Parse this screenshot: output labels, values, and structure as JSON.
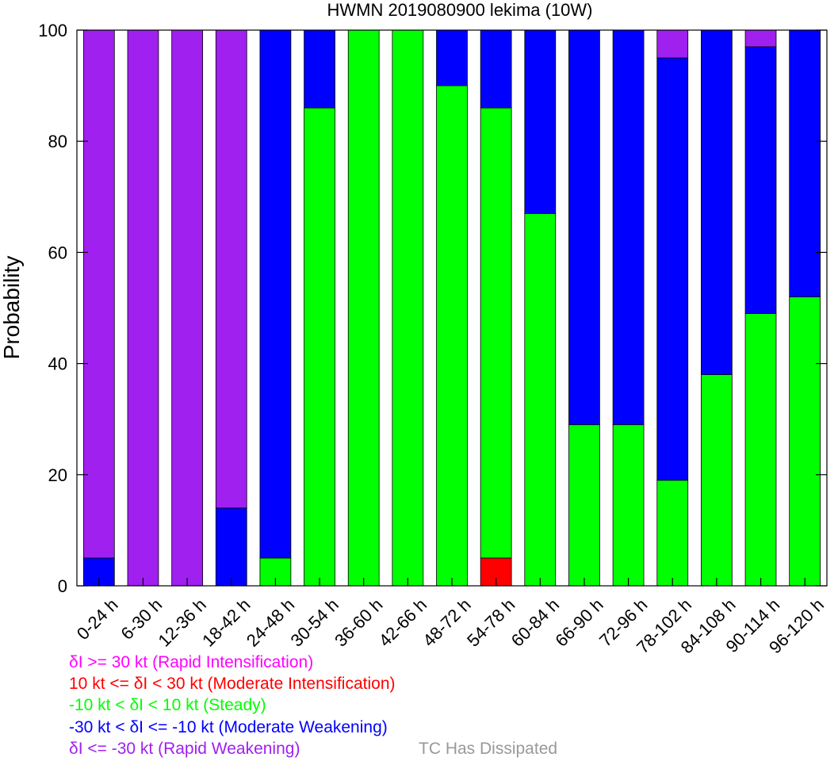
{
  "chart_data": {
    "type": "bar",
    "stacked": true,
    "title": "HWMN 2019080900 lekima (10W)",
    "xlabel": "",
    "ylabel": "Probability",
    "ylim": [
      0,
      100
    ],
    "yticks": [
      0,
      20,
      40,
      60,
      80,
      100
    ],
    "categories": [
      "0-24 h",
      "6-30 h",
      "12-36 h",
      "18-42 h",
      "24-48 h",
      "30-54 h",
      "36-60 h",
      "42-66 h",
      "48-72 h",
      "54-78 h",
      "60-84 h",
      "66-90 h",
      "72-96 h",
      "78-102 h",
      "84-108 h",
      "90-114 h",
      "96-120 h"
    ],
    "series": [
      {
        "name": "Rapid Intensification",
        "color": "#ff00ff",
        "values": [
          0,
          0,
          0,
          0,
          0,
          0,
          0,
          0,
          0,
          0,
          0,
          0,
          0,
          0,
          0,
          0,
          0
        ]
      },
      {
        "name": "Moderate Intensification",
        "color": "#ff0000",
        "values": [
          0,
          0,
          0,
          0,
          0,
          0,
          0,
          0,
          0,
          5,
          0,
          0,
          0,
          0,
          0,
          0,
          0
        ]
      },
      {
        "name": "Steady",
        "color": "#00ff00",
        "values": [
          0,
          0,
          0,
          0,
          5,
          86,
          100,
          100,
          90,
          81,
          67,
          29,
          29,
          19,
          38,
          49,
          52
        ]
      },
      {
        "name": "Moderate Weakening",
        "color": "#0000ff",
        "values": [
          5,
          0,
          0,
          14,
          95,
          14,
          0,
          0,
          10,
          14,
          33,
          71,
          71,
          76,
          62,
          48,
          48
        ]
      },
      {
        "name": "Rapid Weakening",
        "color": "#a020f0",
        "values": [
          95,
          100,
          100,
          86,
          0,
          0,
          0,
          0,
          0,
          0,
          0,
          0,
          0,
          5,
          0,
          3,
          0
        ]
      }
    ],
    "stack_order": [
      "Moderate Intensification",
      "Steady",
      "Moderate Weakening",
      "Rapid Weakening"
    ],
    "legend": [
      {
        "text": "δI >= 30 kt (Rapid Intensification)",
        "color": "#ff00ff"
      },
      {
        "text": "10 kt <= δI < 30 kt (Moderate Intensification)",
        "color": "#ff0000"
      },
      {
        "text": "-10 kt < δI < 10 kt (Steady)",
        "color": "#00ff00"
      },
      {
        "text": "-30 kt < δI <= -10 kt (Moderate Weakening)",
        "color": "#0000ff"
      },
      {
        "text": "δI <= -30 kt (Rapid Weakening)",
        "color": "#a020f0"
      },
      {
        "text": "TC Has Dissipated",
        "color": "#999999"
      }
    ],
    "grid": false,
    "legend_position": "bottom-left"
  }
}
